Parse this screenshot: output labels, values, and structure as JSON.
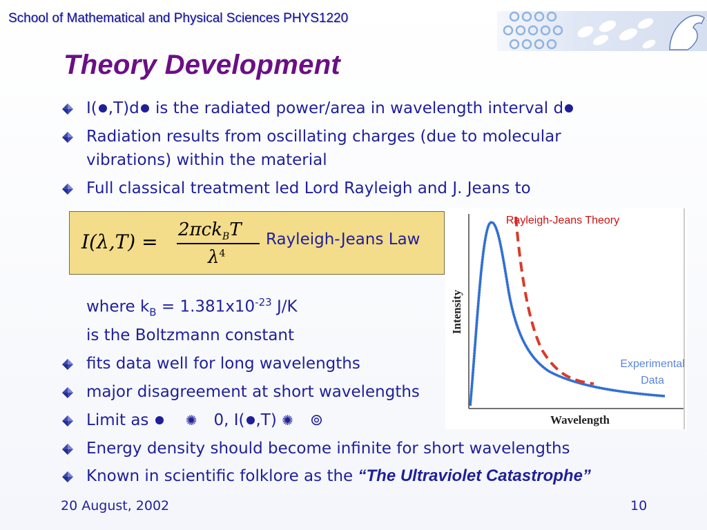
{
  "header": {
    "text": "School of Mathematical and Physical Sciences  PHYS1220"
  },
  "title": "Theory Development",
  "bullets_top": {
    "b1_pre": "I(",
    "b1_mid1": ",T)d",
    "b1_mid2": " is the radiated power/area in wavelength interval d",
    "b2_line1": "Radiation results from oscillating charges (due to molecular",
    "b2_line2": "vibrations) within the material",
    "b3": "Full classical treatment led Lord Rayleigh and J. Jeans to"
  },
  "equation": {
    "lhs": "I(λ,T) =",
    "numerator": "2πck",
    "numerator_sub": "B",
    "numerator_T": "T",
    "denominator": "λ",
    "denominator_sup": "4",
    "label": "Rayleigh-Jeans Law"
  },
  "constant": {
    "line1_pre": "where k",
    "line1_sub": "B",
    "line1_mid": " = 1.381x10",
    "line1_sup": "-23",
    "line1_post": " J/K",
    "line2": "is the Boltzmann constant"
  },
  "bullets_bottom": {
    "b4": "fits data well for long wavelengths",
    "b5": "major disagreement at short wavelengths",
    "b6_pre": "Limit as ",
    "b6_mid": "0, I(",
    "b6_post": ",T) ",
    "b7": "Energy density should become infinite for short wavelengths",
    "b8_pre": "Known in scientific folklore as the ",
    "b8_em": "“The Ultraviolet Catastrophe”"
  },
  "chart_data": {
    "type": "line",
    "xlabel": "Wavelength",
    "ylabel": "Intensity",
    "series": [
      {
        "name": "Rayleigh-Jeans Theory",
        "color": "#d93a2b",
        "style": "dashed"
      },
      {
        "name": "Experimental Data",
        "color": "#2f6fd6",
        "style": "solid"
      }
    ],
    "annotations": [
      "Rayleigh-Jeans Theory",
      "Experimental\nData"
    ]
  },
  "footer": {
    "date": "20 August, 2002",
    "page": "10"
  },
  "colors": {
    "title": "#6b0f86",
    "text": "#1f1f9a",
    "box": "#f3dc8a",
    "bullet": "#3d4ab0"
  }
}
